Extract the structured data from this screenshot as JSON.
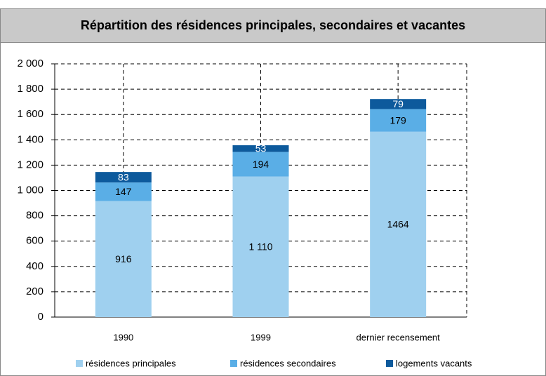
{
  "chart_data": {
    "type": "stacked_bar",
    "title": "Répartition des résidences principales, secondaires et vacantes",
    "categories": [
      "1990",
      "1999",
      "dernier recensement"
    ],
    "series": [
      {
        "name": "résidences principales",
        "color": "#9fd0ef",
        "values": [
          916,
          1110,
          1464
        ],
        "value_labels": [
          "916",
          "1 110",
          "1464"
        ]
      },
      {
        "name": "résidences secondaires",
        "color": "#5aaee6",
        "values": [
          147,
          194,
          179
        ]
      },
      {
        "name": "logements vacants",
        "color": "#0d5a9c",
        "values": [
          83,
          53,
          79
        ]
      }
    ],
    "ylim": [
      0,
      2000
    ],
    "yticks": [
      0,
      200,
      400,
      600,
      800,
      {
        "value": 1000,
        "label": "1 000"
      },
      {
        "value": 1200,
        "label": "1 200"
      },
      {
        "value": 1400,
        "label": "1 400"
      },
      {
        "value": 1600,
        "label": "1 600"
      },
      {
        "value": 1800,
        "label": "1 800"
      },
      {
        "value": 2000,
        "label": "2 000"
      }
    ],
    "grid": true
  }
}
